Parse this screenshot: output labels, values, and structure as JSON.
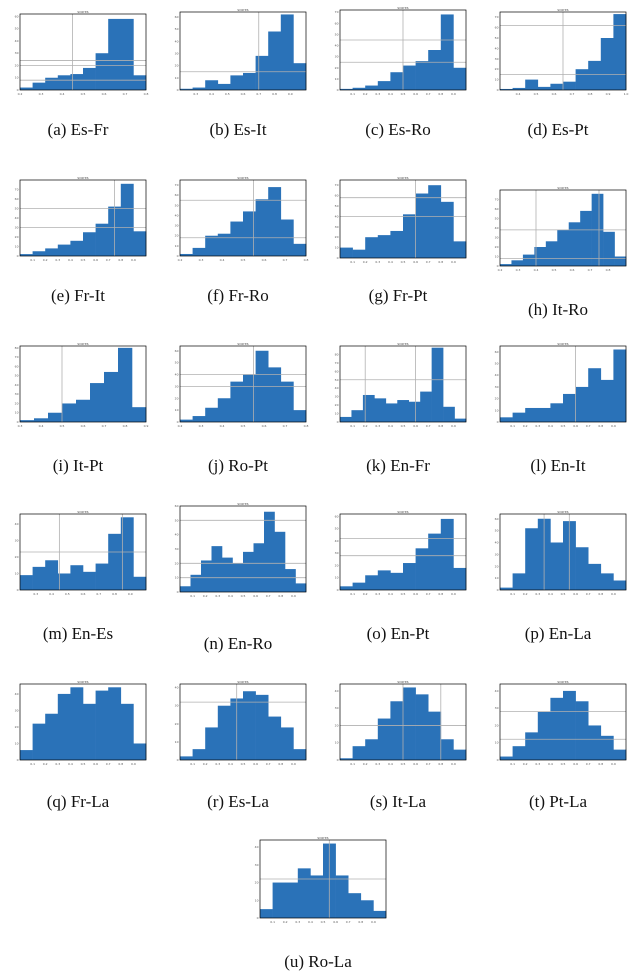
{
  "figure": {
    "bar_color": "#2a72b8",
    "grid_color": "#b0b0b0",
    "axis_color": "#000000"
  },
  "chart_data": [
    {
      "type": "bar",
      "label": "(a) Es-Fr",
      "title": "scores",
      "values": [
        2,
        6,
        10,
        12,
        13,
        18,
        30,
        58,
        58,
        12
      ],
      "xlim": [
        0.2,
        0.8
      ],
      "ylim": [
        0,
        62
      ],
      "ticks_x": [
        "0.2",
        "0.3",
        "0.4",
        "0.5",
        "0.6",
        "0.7",
        "0.8"
      ],
      "ticks_y": [
        "0",
        "10",
        "20",
        "30",
        "40",
        "50",
        "60"
      ],
      "vlines": [
        0.45
      ],
      "hlines": [
        8,
        20,
        24
      ]
    },
    {
      "type": "bar",
      "label": "(b) Es-It",
      "title": "scores",
      "values": [
        1,
        2,
        8,
        5,
        12,
        14,
        28,
        48,
        62,
        22
      ],
      "xlim": [
        0.2,
        1.0
      ],
      "ylim": [
        0,
        64
      ],
      "ticks_x": [
        "0.3",
        "0.4",
        "0.5",
        "0.6",
        "0.7",
        "0.8",
        "0.9"
      ],
      "ticks_y": [
        "0",
        "10",
        "20",
        "30",
        "40",
        "50",
        "60"
      ],
      "vlines": [
        0.7
      ],
      "hlines": [
        15
      ]
    },
    {
      "type": "bar",
      "label": "(c) Es-Ro",
      "title": "scores",
      "values": [
        1,
        2,
        4,
        8,
        16,
        22,
        26,
        36,
        68,
        20
      ],
      "xlim": [
        0.0,
        1.0
      ],
      "ylim": [
        0,
        72
      ],
      "ticks_x": [
        "0.1",
        "0.2",
        "0.3",
        "0.4",
        "0.5",
        "0.6",
        "0.7",
        "0.8",
        "0.9"
      ],
      "ticks_y": [
        "0",
        "10",
        "20",
        "30",
        "40",
        "50",
        "60",
        "70"
      ],
      "vlines": [
        0.5
      ],
      "hlines": [
        25,
        45
      ]
    },
    {
      "type": "bar",
      "label": "(d) Es-Pt",
      "title": "scores",
      "values": [
        1,
        2,
        10,
        3,
        6,
        8,
        20,
        28,
        50,
        73
      ],
      "xlim": [
        0.3,
        1.0
      ],
      "ylim": [
        0,
        75
      ],
      "ticks_x": [
        "0.4",
        "0.5",
        "0.6",
        "0.7",
        "0.8",
        "0.9",
        "1.0"
      ],
      "ticks_y": [
        "0",
        "10",
        "20",
        "30",
        "40",
        "50",
        "60",
        "70"
      ],
      "vlines": [
        0.65
      ],
      "hlines": [
        15,
        62
      ]
    },
    {
      "type": "bar",
      "label": "(e) Fr-It",
      "title": "scores",
      "values": [
        2,
        5,
        8,
        12,
        16,
        25,
        34,
        52,
        76,
        26
      ],
      "xlim": [
        0.0,
        1.0
      ],
      "ylim": [
        0,
        80
      ],
      "ticks_x": [
        "0.1",
        "0.2",
        "0.3",
        "0.4",
        "0.5",
        "0.6",
        "0.7",
        "0.8",
        "0.9"
      ],
      "ticks_y": [
        "0",
        "10",
        "20",
        "30",
        "40",
        "50",
        "60",
        "70"
      ],
      "vlines": [
        0.75
      ],
      "hlines": [
        30,
        50
      ]
    },
    {
      "type": "bar",
      "label": "(f) Fr-Ro",
      "title": "scores",
      "values": [
        2,
        8,
        20,
        22,
        34,
        44,
        56,
        68,
        36,
        12
      ],
      "xlim": [
        0.2,
        0.8
      ],
      "ylim": [
        0,
        75
      ],
      "ticks_x": [
        "0.2",
        "0.3",
        "0.4",
        "0.5",
        "0.6",
        "0.7",
        "0.8"
      ],
      "ticks_y": [
        "0",
        "10",
        "20",
        "30",
        "40",
        "50",
        "60",
        "70"
      ],
      "vlines": [
        0.55
      ],
      "hlines": [
        18,
        55
      ]
    },
    {
      "type": "bar",
      "label": "(g) Fr-Pt",
      "title": "scores",
      "values": [
        10,
        8,
        20,
        22,
        26,
        42,
        62,
        70,
        54,
        16
      ],
      "xlim": [
        0.0,
        1.0
      ],
      "ylim": [
        0,
        75
      ],
      "ticks_x": [
        "0.1",
        "0.2",
        "0.3",
        "0.4",
        "0.5",
        "0.6",
        "0.7",
        "0.8",
        "0.9"
      ],
      "ticks_y": [
        "0",
        "10",
        "20",
        "30",
        "40",
        "50",
        "60",
        "70"
      ],
      "vlines": [
        0.6
      ],
      "hlines": [
        40,
        58
      ]
    },
    {
      "type": "bar",
      "label": "(h) It-Ro",
      "title": "scores",
      "values": [
        2,
        6,
        12,
        20,
        26,
        38,
        46,
        58,
        76,
        36,
        10
      ],
      "xlim": [
        0.2,
        0.9
      ],
      "ylim": [
        0,
        80
      ],
      "ticks_x": [
        "0.2",
        "0.3",
        "0.4",
        "0.5",
        "0.6",
        "0.7",
        "0.8"
      ],
      "ticks_y": [
        "0",
        "10",
        "20",
        "30",
        "40",
        "50",
        "60",
        "70"
      ],
      "vlines": [
        0.4,
        0.75
      ],
      "hlines": [
        8,
        38
      ]
    },
    {
      "type": "bar",
      "label": "(i) It-Pt",
      "title": "scores",
      "values": [
        2,
        4,
        10,
        20,
        24,
        42,
        54,
        80,
        16
      ],
      "xlim": [
        0.3,
        0.9
      ],
      "ylim": [
        0,
        82
      ],
      "ticks_x": [
        "0.3",
        "0.4",
        "0.5",
        "0.6",
        "0.7",
        "0.8",
        "0.9"
      ],
      "ticks_y": [
        "0",
        "10",
        "20",
        "30",
        "40",
        "50",
        "60",
        "70",
        "80"
      ],
      "vlines": [
        0.5
      ],
      "hlines": []
    },
    {
      "type": "bar",
      "label": "(j) Ro-Pt",
      "title": "scores",
      "values": [
        2,
        5,
        12,
        20,
        34,
        40,
        60,
        46,
        34,
        10
      ],
      "xlim": [
        0.2,
        0.8
      ],
      "ylim": [
        0,
        64
      ],
      "ticks_x": [
        "0.2",
        "0.3",
        "0.4",
        "0.5",
        "0.6",
        "0.7",
        "0.8"
      ],
      "ticks_y": [
        "0",
        "10",
        "20",
        "30",
        "40",
        "50",
        "60"
      ],
      "vlines": [
        0.55
      ],
      "hlines": [
        30,
        40
      ]
    },
    {
      "type": "bar",
      "label": "(k) En-Fr",
      "title": "scores",
      "values": [
        6,
        14,
        32,
        28,
        22,
        26,
        24,
        36,
        88,
        18,
        4
      ],
      "xlim": [
        0.0,
        1.0
      ],
      "ylim": [
        0,
        90
      ],
      "ticks_x": [
        "0.1",
        "0.2",
        "0.3",
        "0.4",
        "0.5",
        "0.6",
        "0.7",
        "0.8",
        "0.9"
      ],
      "ticks_y": [
        "0",
        "10",
        "20",
        "30",
        "40",
        "50",
        "60",
        "70",
        "80"
      ],
      "vlines": [
        0.2,
        0.6
      ],
      "hlines": [
        50
      ]
    },
    {
      "type": "bar",
      "label": "(l) En-It",
      "title": "scores",
      "values": [
        4,
        8,
        12,
        12,
        16,
        24,
        30,
        46,
        36,
        62
      ],
      "xlim": [
        0.0,
        1.0
      ],
      "ylim": [
        0,
        65
      ],
      "ticks_x": [
        "0.1",
        "0.2",
        "0.3",
        "0.4",
        "0.5",
        "0.6",
        "0.7",
        "0.8",
        "0.9"
      ],
      "ticks_y": [
        "0",
        "10",
        "20",
        "30",
        "40",
        "50",
        "60"
      ],
      "vlines": [
        0.6
      ],
      "hlines": []
    },
    {
      "type": "bar",
      "label": "(m) En-Es",
      "title": "scores",
      "values": [
        9,
        14,
        18,
        10,
        15,
        11,
        16,
        34,
        44,
        8
      ],
      "xlim": [
        0.2,
        1.0
      ],
      "ylim": [
        0,
        46
      ],
      "ticks_x": [
        "0.3",
        "0.4",
        "0.5",
        "0.6",
        "0.7",
        "0.8",
        "0.9"
      ],
      "ticks_y": [
        "0",
        "10",
        "20",
        "30",
        "40"
      ],
      "vlines": [
        0.45,
        0.85
      ],
      "hlines": [
        23
      ]
    },
    {
      "type": "bar",
      "label": "(n) En-Ro",
      "title": "scores",
      "values": [
        4,
        12,
        22,
        32,
        24,
        20,
        28,
        34,
        56,
        42,
        16,
        6
      ],
      "xlim": [
        0.0,
        1.0
      ],
      "ylim": [
        0,
        60
      ],
      "ticks_x": [
        "0.1",
        "0.2",
        "0.3",
        "0.4",
        "0.5",
        "0.6",
        "0.7",
        "0.8",
        "0.9"
      ],
      "ticks_y": [
        "0",
        "10",
        "20",
        "30",
        "40",
        "50",
        "60"
      ],
      "vlines": [],
      "hlines": [
        10,
        20,
        50
      ]
    },
    {
      "type": "bar",
      "label": "(o) En-Pt",
      "title": "scores",
      "values": [
        3,
        6,
        12,
        16,
        14,
        22,
        34,
        46,
        58,
        18
      ],
      "xlim": [
        0.0,
        1.0
      ],
      "ylim": [
        0,
        62
      ],
      "ticks_x": [
        "0.1",
        "0.2",
        "0.3",
        "0.4",
        "0.5",
        "0.6",
        "0.7",
        "0.8",
        "0.9"
      ],
      "ticks_y": [
        "0",
        "10",
        "20",
        "30",
        "40",
        "50",
        "60"
      ],
      "vlines": [],
      "hlines": [
        28,
        42
      ]
    },
    {
      "type": "bar",
      "label": "(p) En-La",
      "title": "scores",
      "values": [
        2,
        14,
        52,
        60,
        40,
        58,
        36,
        22,
        14,
        8
      ],
      "xlim": [
        0.0,
        1.0
      ],
      "ylim": [
        0,
        64
      ],
      "ticks_x": [
        "0.1",
        "0.2",
        "0.3",
        "0.4",
        "0.5",
        "0.6",
        "0.7",
        "0.8",
        "0.9"
      ],
      "ticks_y": [
        "0",
        "10",
        "20",
        "30",
        "40",
        "50",
        "60"
      ],
      "vlines": [
        0.35,
        0.55
      ],
      "hlines": []
    },
    {
      "type": "bar",
      "label": "(q) Fr-La",
      "title": "scores",
      "values": [
        6,
        22,
        28,
        40,
        44,
        34,
        42,
        44,
        34,
        10
      ],
      "xlim": [
        0.0,
        1.0
      ],
      "ylim": [
        0,
        46
      ],
      "ticks_x": [
        "0.1",
        "0.2",
        "0.3",
        "0.4",
        "0.5",
        "0.6",
        "0.7",
        "0.8",
        "0.9"
      ],
      "ticks_y": [
        "0",
        "10",
        "20",
        "30",
        "40"
      ],
      "vlines": [],
      "hlines": []
    },
    {
      "type": "bar",
      "label": "(r) Es-La",
      "title": "scores",
      "values": [
        2,
        6,
        18,
        30,
        34,
        38,
        36,
        24,
        18,
        6
      ],
      "xlim": [
        0.0,
        1.0
      ],
      "ylim": [
        0,
        42
      ],
      "ticks_x": [
        "0.1",
        "0.2",
        "0.3",
        "0.4",
        "0.5",
        "0.6",
        "0.7",
        "0.8",
        "0.9"
      ],
      "ticks_y": [
        "0",
        "10",
        "20",
        "30",
        "40"
      ],
      "vlines": [
        0.45
      ],
      "hlines": [
        32
      ]
    },
    {
      "type": "bar",
      "label": "(s) It-La",
      "title": "scores",
      "values": [
        1,
        8,
        12,
        24,
        34,
        42,
        38,
        28,
        12,
        6
      ],
      "xlim": [
        0.0,
        1.0
      ],
      "ylim": [
        0,
        44
      ],
      "ticks_x": [
        "0.1",
        "0.2",
        "0.3",
        "0.4",
        "0.5",
        "0.6",
        "0.7",
        "0.8",
        "0.9"
      ],
      "ticks_y": [
        "0",
        "10",
        "20",
        "30",
        "40"
      ],
      "vlines": [
        0.5,
        0.8
      ],
      "hlines": [
        20
      ]
    },
    {
      "type": "bar",
      "label": "(t) Pt-La",
      "title": "scores",
      "values": [
        2,
        8,
        16,
        28,
        36,
        40,
        34,
        20,
        14,
        6
      ],
      "xlim": [
        0.0,
        1.0
      ],
      "ylim": [
        0,
        44
      ],
      "ticks_x": [
        "0.1",
        "0.2",
        "0.3",
        "0.4",
        "0.5",
        "0.6",
        "0.7",
        "0.8",
        "0.9"
      ],
      "ticks_y": [
        "0",
        "10",
        "20",
        "30",
        "40"
      ],
      "vlines": [],
      "hlines": [
        12,
        28
      ]
    },
    {
      "type": "bar",
      "label": "(u) Ro-La",
      "title": "scores",
      "values": [
        5,
        20,
        20,
        28,
        24,
        42,
        24,
        14,
        10,
        4
      ],
      "xlim": [
        0.0,
        1.0
      ],
      "ylim": [
        0,
        44
      ],
      "ticks_x": [
        "0.1",
        "0.2",
        "0.3",
        "0.4",
        "0.5",
        "0.6",
        "0.7",
        "0.8",
        "0.9"
      ],
      "ticks_y": [
        "0",
        "10",
        "20",
        "30",
        "40"
      ],
      "vlines": [
        0.55
      ],
      "hlines": [
        22
      ]
    }
  ]
}
